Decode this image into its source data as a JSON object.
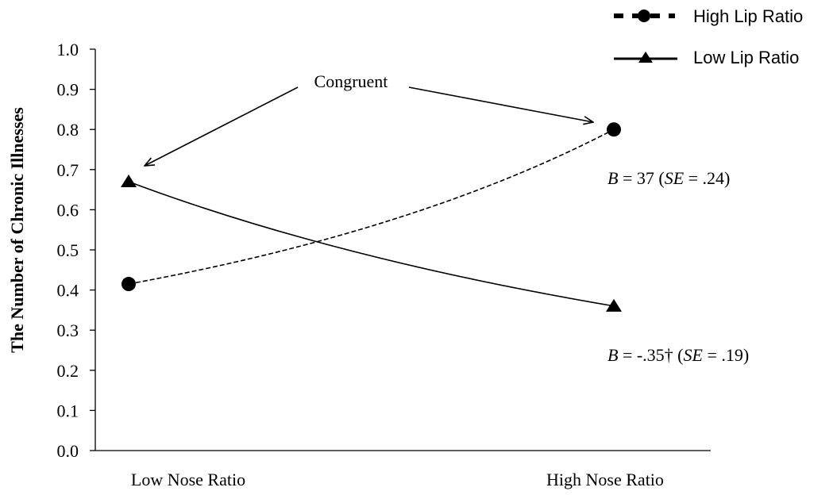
{
  "chart_data": {
    "type": "line",
    "categories": [
      "Low Nose Ratio",
      "High Nose Ratio"
    ],
    "ylabel": "The Number of Chronic Illnesses",
    "ylim": [
      0,
      1
    ],
    "yticks": [
      "0.0",
      "0.1",
      "0.2",
      "0.3",
      "0.4",
      "0.5",
      "0.6",
      "0.7",
      "0.8",
      "0.9",
      "1.0"
    ],
    "grid": false,
    "legend_position": "top-right",
    "series": [
      {
        "name": "High Lip Ratio",
        "values": [
          0.415,
          0.8
        ],
        "line_style": "dashed",
        "marker": "circle",
        "color": "#000000"
      },
      {
        "name": "Low Lip Ratio",
        "values": [
          0.67,
          0.36
        ],
        "line_style": "solid",
        "marker": "triangle",
        "color": "#000000"
      }
    ],
    "annotations": {
      "congruent": "Congruent",
      "high_stat": {
        "b_label": "B",
        "b_value": " = 37 (",
        "se_label": "SE",
        "se_value": " = .24)"
      },
      "low_stat": {
        "b_label": "B",
        "b_value": " = -.35† (",
        "se_label": "SE",
        "se_value": " = .19)"
      }
    }
  }
}
